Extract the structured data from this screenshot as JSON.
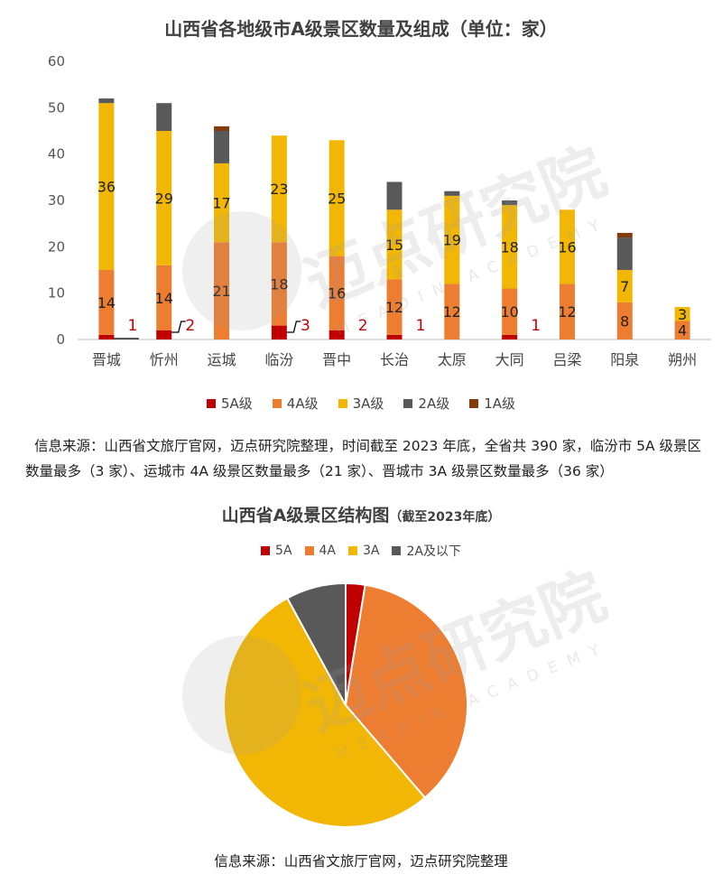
{
  "bar_title": "山西省各地级市A级景区数量及组成（单位：家）",
  "pie_title": "山西省A级景区结构图",
  "pie_subtitle": "（截至2023年底）",
  "watermark": {
    "cn": "迈点研究院",
    "en": "MEADIN ACADEMY"
  },
  "note1": "信息来源：山西省文旅厅官网，迈点研究院整理，时间截至 2023 年底，全省共 390 家，临汾市 5A 级景区数量最多（3 家）、运城市 4A 级景区数量最多（21 家）、晋城市 3A 级景区数量最多（36 家）",
  "note2": "信息来源：山西省文旅厅官网，迈点研究院整理",
  "colors": {
    "5A": "#C00000",
    "4A": "#ED7D31",
    "3A": "#F2B705",
    "2A": "#595959",
    "1A": "#843C0C"
  },
  "chart_data": [
    {
      "type": "bar",
      "stacked": true,
      "title": "山西省各地级市A级景区数量及组成（单位：家）",
      "categories": [
        "晋城",
        "忻州",
        "运城",
        "临汾",
        "晋中",
        "长治",
        "太原",
        "大同",
        "吕梁",
        "阳泉",
        "朔州"
      ],
      "yticks": [
        "0",
        "10",
        "20",
        "30",
        "40",
        "50",
        "60"
      ],
      "ylim": [
        0,
        60
      ],
      "grid": false,
      "legend": "bottom",
      "series": [
        {
          "name": "5A级",
          "key": "5A",
          "values": [
            1,
            2,
            0,
            3,
            2,
            1,
            0,
            1,
            0,
            0,
            0
          ]
        },
        {
          "name": "4A级",
          "key": "4A",
          "values": [
            14,
            14,
            21,
            18,
            16,
            12,
            12,
            10,
            12,
            8,
            4
          ]
        },
        {
          "name": "3A级",
          "key": "3A",
          "values": [
            36,
            29,
            17,
            23,
            25,
            15,
            19,
            18,
            16,
            7,
            3
          ]
        },
        {
          "name": "2A级",
          "key": "2A",
          "values": [
            1,
            6,
            7,
            0,
            0,
            6,
            1,
            1,
            0,
            7,
            0
          ]
        },
        {
          "name": "1A级",
          "key": "1A",
          "values": [
            0,
            0,
            1,
            0,
            0,
            0,
            0,
            0,
            0,
            1,
            0
          ]
        }
      ]
    },
    {
      "type": "pie",
      "title": "山西省A级景区结构图",
      "subtitle": "（截至2023年底）",
      "legend": "top",
      "slices": [
        {
          "label": "5A",
          "key": "5A",
          "value": 10
        },
        {
          "label": "4A",
          "key": "4A",
          "value": 141
        },
        {
          "label": "3A",
          "key": "3A",
          "value": 208
        },
        {
          "label": "2A及以下",
          "key": "2A",
          "value": 31
        }
      ]
    }
  ]
}
